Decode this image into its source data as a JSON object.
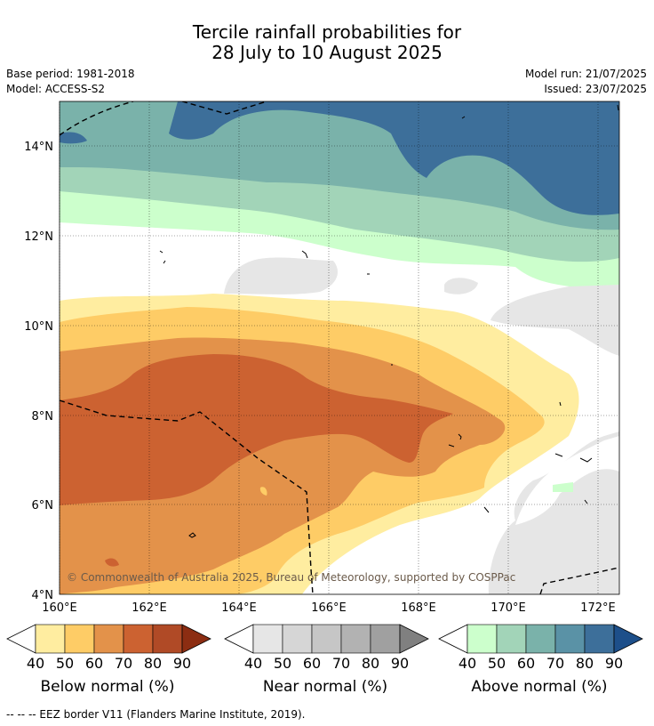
{
  "title_line1": "Tercile rainfall probabilities for",
  "title_line2": "28 July to 10 August 2025",
  "base_period": "Base period: 1981-2018",
  "model": "Model: ACCESS-S2",
  "model_run": "Model run: 21/07/2025",
  "issued": "Issued: 23/07/2025",
  "copyright": "© Commonwealth of Australia 2025, Bureau of Meteorology, supported by COSPPac",
  "lat_ticks": [
    "14°N",
    "12°N",
    "10°N",
    "8°N",
    "6°N",
    "4°N"
  ],
  "lon_ticks": [
    "160°E",
    "162°E",
    "164°E",
    "166°E",
    "168°E",
    "170°E",
    "172°E"
  ],
  "colorbars": [
    {
      "name": "below",
      "label": "Below normal (%)",
      "ticks": [
        "40",
        "50",
        "60",
        "70",
        "80",
        "90"
      ],
      "colors": [
        "#ffeda0",
        "#fecc66",
        "#e3924a",
        "#cc6231",
        "#b04a26",
        "#8c2d12"
      ]
    },
    {
      "name": "near",
      "label": "Near normal (%)",
      "ticks": [
        "40",
        "50",
        "60",
        "70",
        "80",
        "90"
      ],
      "colors": [
        "#e6e6e6",
        "#d6d6d6",
        "#c6c6c6",
        "#b2b2b2",
        "#a0a0a0",
        "#808080"
      ]
    },
    {
      "name": "above",
      "label": "Above normal (%)",
      "ticks": [
        "40",
        "50",
        "60",
        "70",
        "80",
        "90"
      ],
      "colors": [
        "#ccffcc",
        "#a2d4b8",
        "#7ab2aa",
        "#5a92a6",
        "#3d6f9a",
        "#1d4f8a"
      ]
    }
  ],
  "footer": "--  --  -- EEZ border V11 (Flanders Marine Institute, 2019).",
  "colors": {
    "below_40": "#ffeda0",
    "below_50": "#fecc66",
    "below_60": "#e3924a",
    "below_70": "#cc6231",
    "near_40": "#e6e6e6",
    "above_40": "#ccffcc",
    "above_50": "#a2d4b8",
    "above_60": "#7ab2aa",
    "above_70": "#5a92a6",
    "above_80": "#3d6f9a"
  }
}
